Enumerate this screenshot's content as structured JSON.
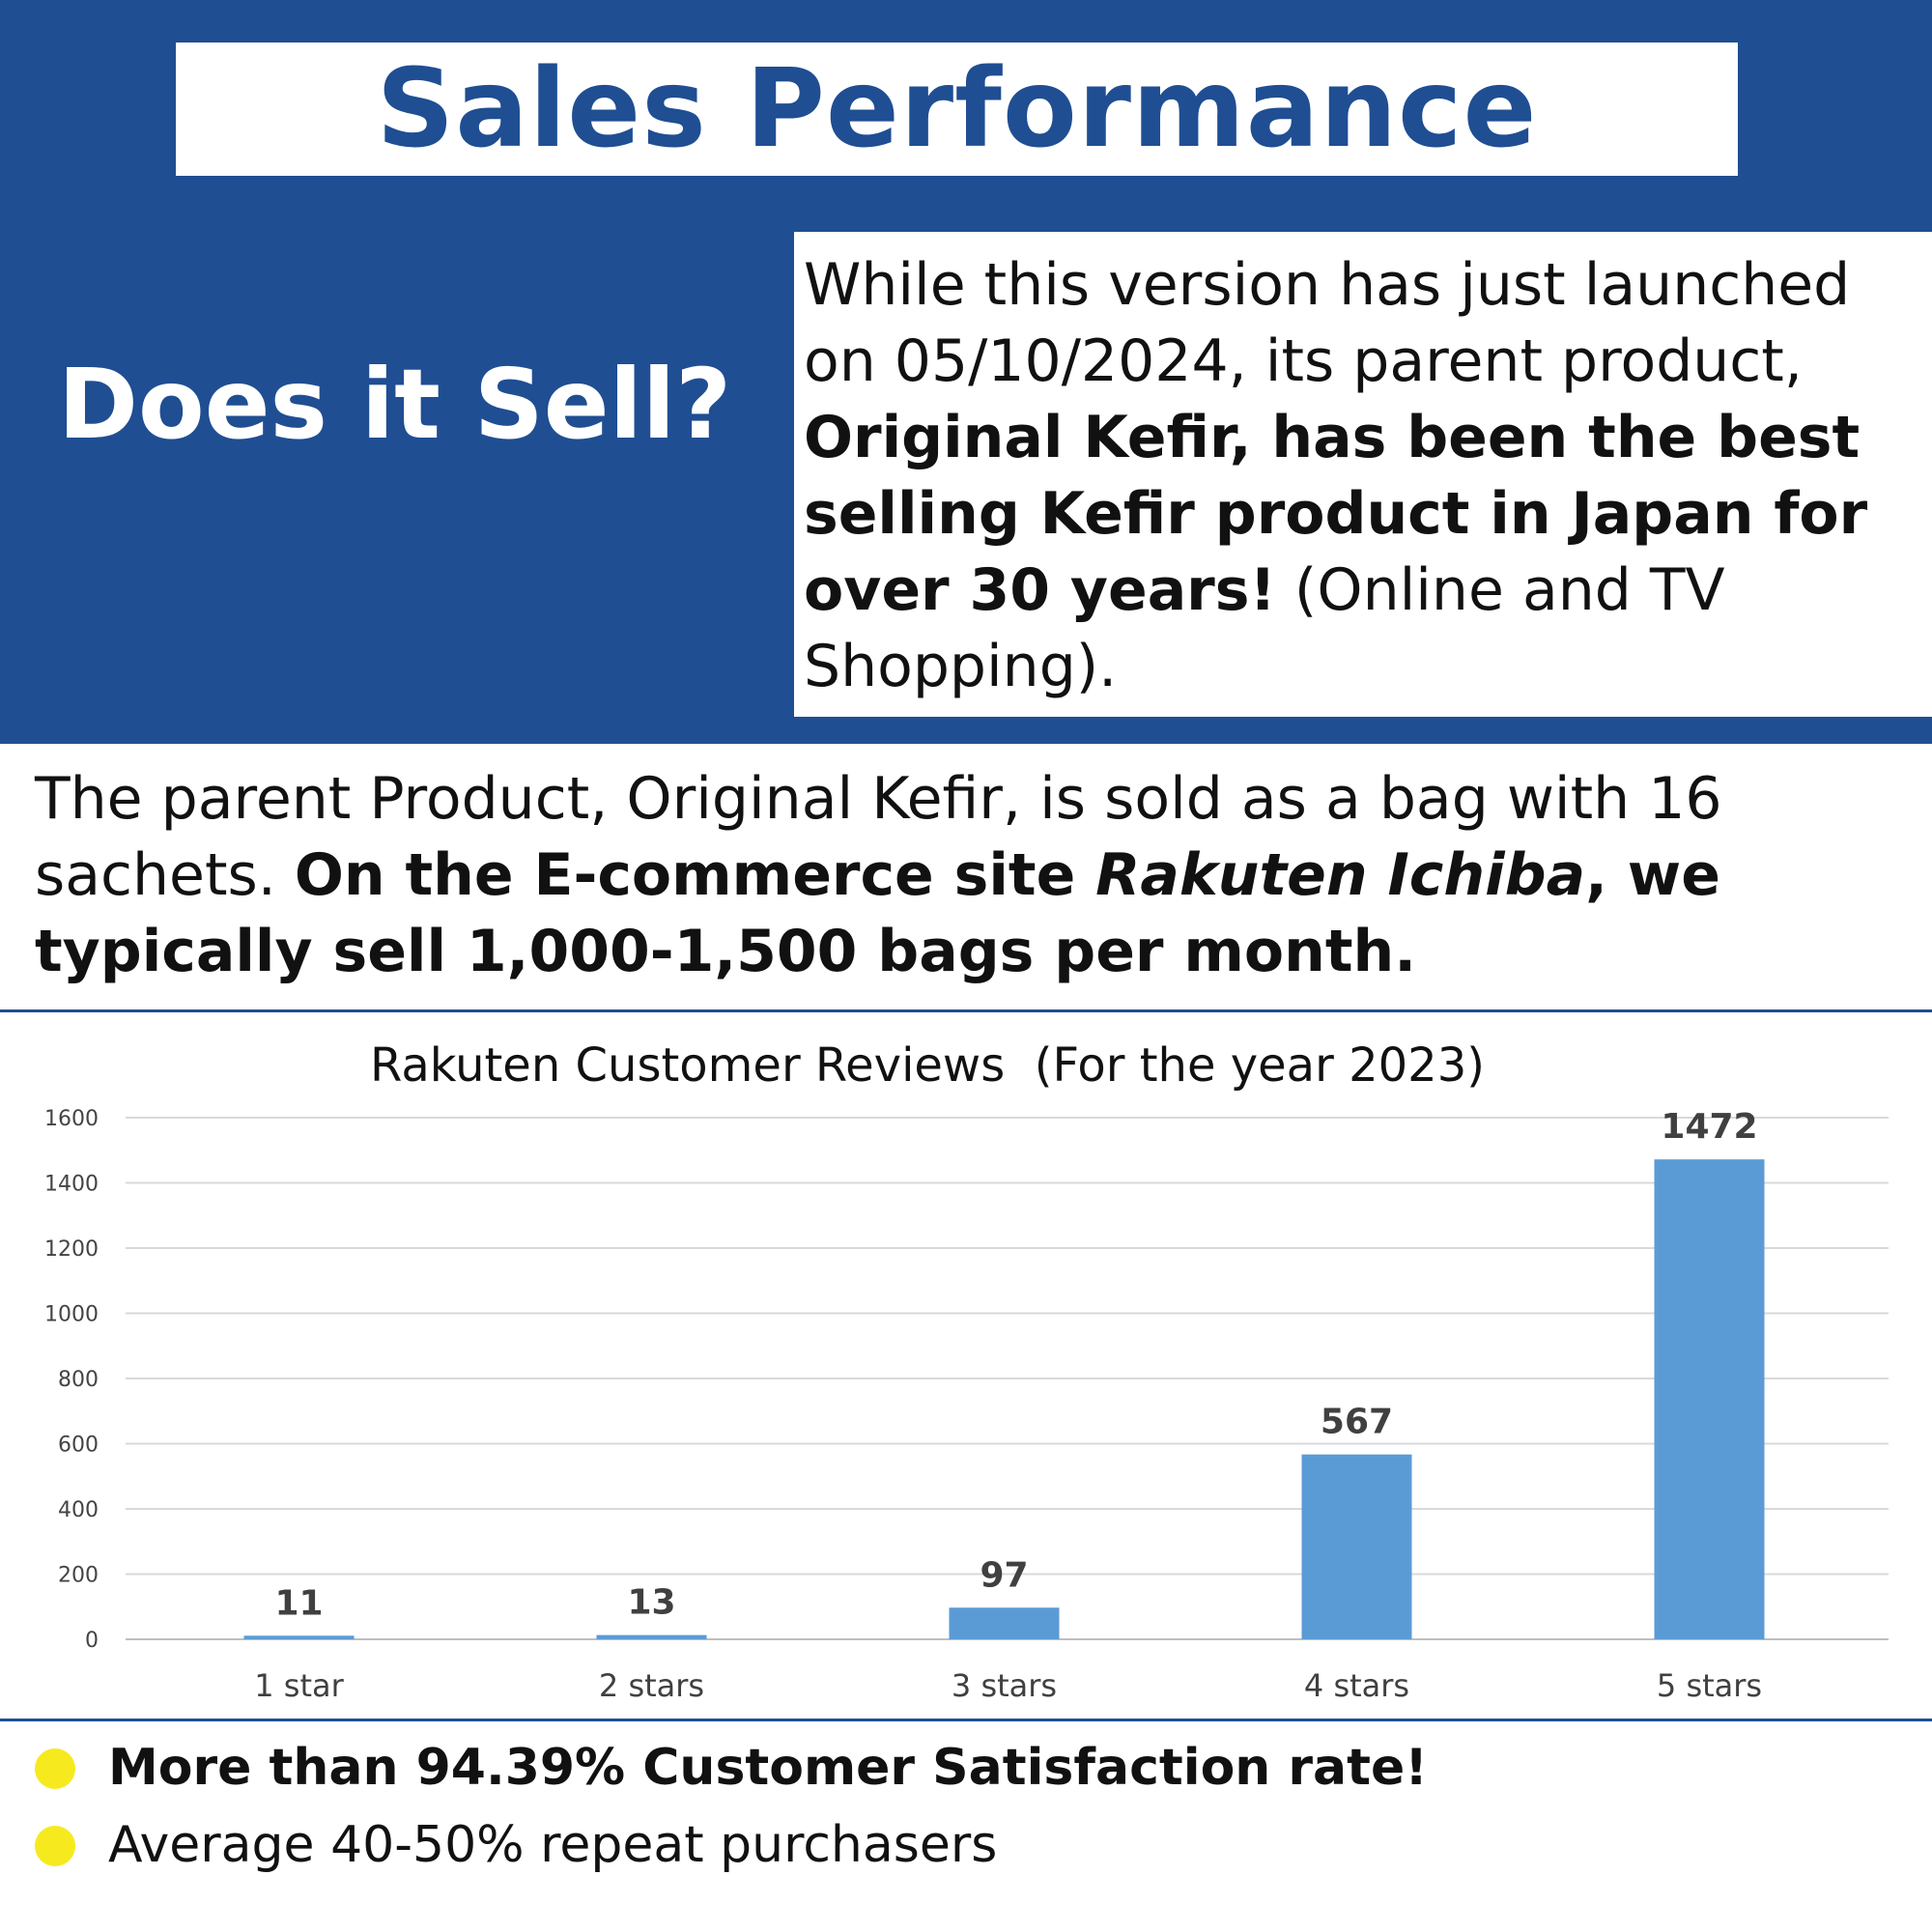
{
  "header": {
    "title": "Sales Performance",
    "subtitle": "Does it Sell?"
  },
  "intro": {
    "p1": "While this version has just launched on 05/10/2024, its parent product, ",
    "p1_bold": "Original Kefir, has been the best selling Kefir product in Japan for over 30 years!",
    "p1_end": " (Online and TV Shopping)."
  },
  "parent": {
    "p1": "The parent Product, Original Kefir, is sold as a bag with 16 sachets. ",
    "p1_bold_a": "On the E-commerce site ",
    "p1_bold_italic": "Rakuten Ichiba",
    "p1_bold_b": ", we typically sell 1,000-1,500 bags per month."
  },
  "chart_data": {
    "type": "bar",
    "title": "Rakuten Customer Reviews  (For the year 2023)",
    "categories": [
      "1 star",
      "2 stars",
      "3 stars",
      "4 stars",
      "5 stars"
    ],
    "values": [
      11,
      13,
      97,
      567,
      1472
    ],
    "ylim": [
      0,
      1600
    ],
    "yticks": [
      0,
      200,
      400,
      600,
      800,
      1000,
      1200,
      1400,
      1600
    ],
    "grid": true,
    "bar_color": "#5b9bd5"
  },
  "bullets": [
    {
      "text": "More than 94.39% Customer Satisfaction rate!",
      "bold": true
    },
    {
      "text": "Average 40-50% repeat purchasers",
      "bold": false
    }
  ],
  "colors": {
    "brand_blue": "#1f4e93",
    "bullet_yellow": "#f6ea1f"
  }
}
